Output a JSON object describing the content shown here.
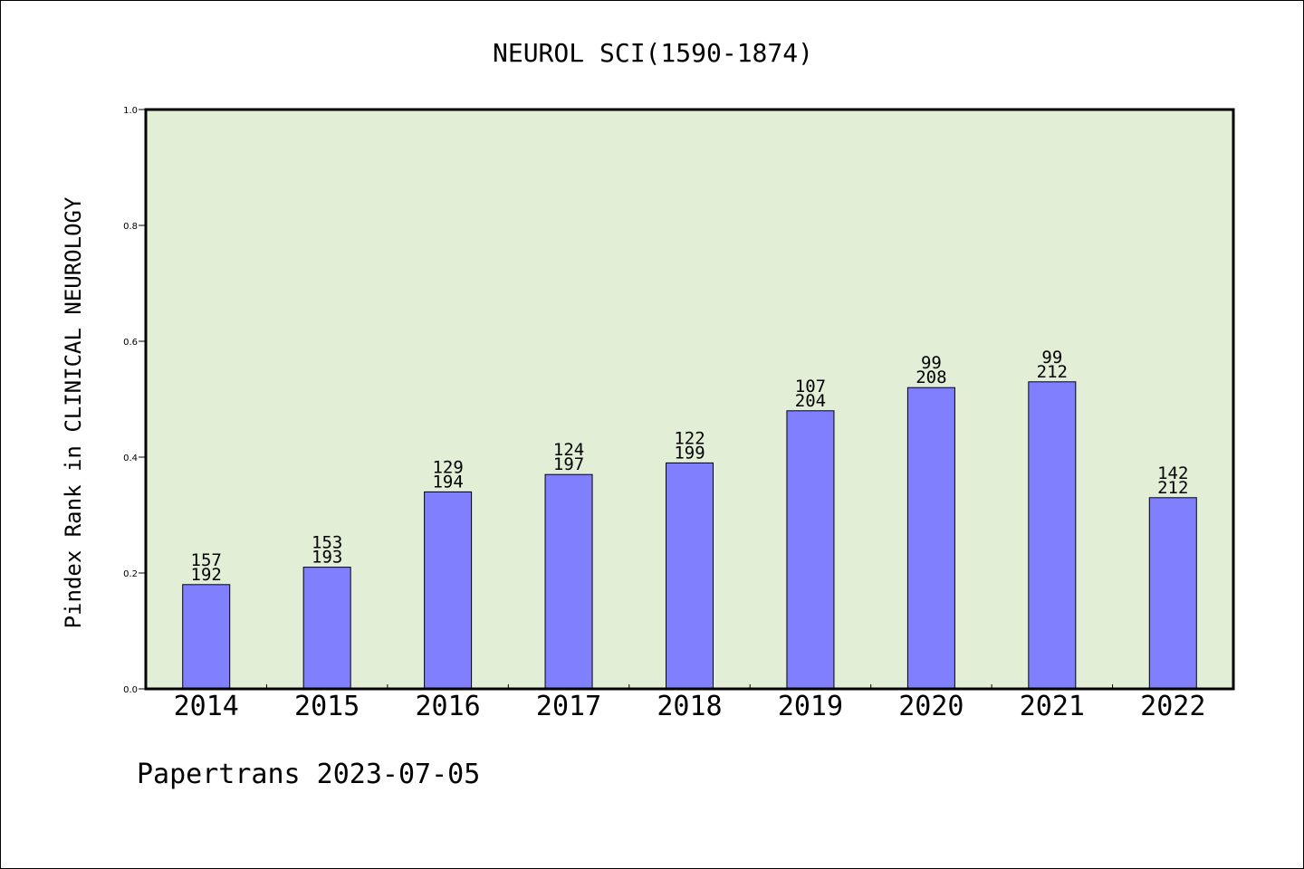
{
  "chart_data": {
    "type": "bar",
    "title": "NEUROL SCI(1590-1874)",
    "ylabel": "Pindex Rank in CLINICAL NEUROLOGY",
    "xlabel": "",
    "ylim": [
      0.0,
      1.0
    ],
    "yticks": [
      "0.0",
      "0.2",
      "0.4",
      "0.6",
      "0.8",
      "1.0"
    ],
    "categories": [
      "2014",
      "2015",
      "2016",
      "2017",
      "2018",
      "2019",
      "2020",
      "2021",
      "2022"
    ],
    "values": [
      0.18,
      0.21,
      0.34,
      0.37,
      0.39,
      0.48,
      0.52,
      0.53,
      0.33
    ],
    "rank_labels": [
      "157",
      "153",
      "129",
      "124",
      "122",
      "107",
      "99",
      "99",
      "142"
    ],
    "total_labels": [
      "192",
      "193",
      "194",
      "197",
      "199",
      "204",
      "208",
      "212",
      "212"
    ],
    "bar_color": "#8080ff",
    "plot_background": "#e2efd6",
    "grid": false,
    "legend": "none"
  },
  "footer": "Papertrans 2023-07-05"
}
